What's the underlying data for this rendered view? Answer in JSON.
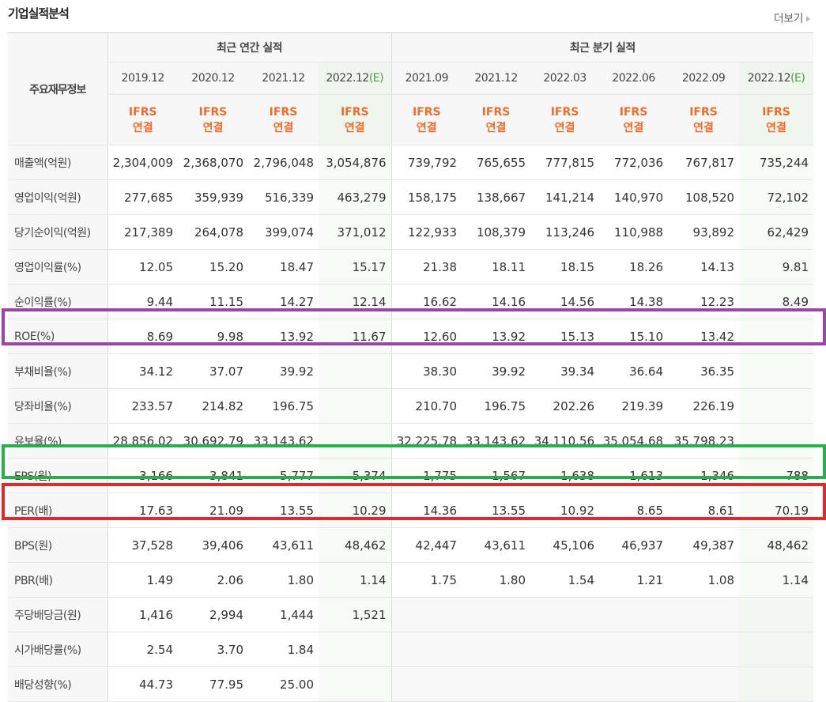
{
  "header": {
    "title": "기업실적분석",
    "more_label": "더보기"
  },
  "table": {
    "corner_label": "주요재무정보",
    "annual_group": "최근 연간 실적",
    "quarter_group": "최근 분기 실적",
    "estimate_mark": "(E)",
    "ifrs_line1": "IFRS",
    "ifrs_line2": "연결",
    "annual_dates": [
      "2019.12",
      "2020.12",
      "2021.12",
      "2022.12"
    ],
    "quarter_dates": [
      "2021.09",
      "2021.12",
      "2022.03",
      "2022.06",
      "2022.09",
      "2022.12"
    ],
    "rows": [
      {
        "label": "매출액(억원)",
        "values": [
          "2,304,009",
          "2,368,070",
          "2,796,048",
          "3,054,876",
          "739,792",
          "765,655",
          "777,815",
          "772,036",
          "767,817",
          "735,244"
        ]
      },
      {
        "label": "영업이익(억원)",
        "values": [
          "277,685",
          "359,939",
          "516,339",
          "463,279",
          "158,175",
          "138,667",
          "141,214",
          "140,970",
          "108,520",
          "72,102"
        ]
      },
      {
        "label": "당기순이익(억원)",
        "values": [
          "217,389",
          "264,078",
          "399,074",
          "371,012",
          "122,933",
          "108,379",
          "113,246",
          "110,988",
          "93,892",
          "62,429"
        ]
      },
      {
        "label": "영업이익률(%)",
        "values": [
          "12.05",
          "15.20",
          "18.47",
          "15.17",
          "21.38",
          "18.11",
          "18.15",
          "18.26",
          "14.13",
          "9.81"
        ]
      },
      {
        "label": "순이익률(%)",
        "values": [
          "9.44",
          "11.15",
          "14.27",
          "12.14",
          "16.62",
          "14.16",
          "14.56",
          "14.38",
          "12.23",
          "8.49"
        ]
      },
      {
        "label": "ROE(%)",
        "values": [
          "8.69",
          "9.98",
          "13.92",
          "11.67",
          "12.60",
          "13.92",
          "15.13",
          "15.10",
          "13.42",
          ""
        ]
      },
      {
        "label": "부채비율(%)",
        "values": [
          "34.12",
          "37.07",
          "39.92",
          "",
          "38.30",
          "39.92",
          "39.34",
          "36.64",
          "36.35",
          ""
        ]
      },
      {
        "label": "당좌비율(%)",
        "values": [
          "233.57",
          "214.82",
          "196.75",
          "",
          "210.70",
          "196.75",
          "202.26",
          "219.39",
          "226.19",
          ""
        ]
      },
      {
        "label": "유보율(%)",
        "values": [
          "28,856.02",
          "30,692.79",
          "33,143.62",
          "",
          "32,225.78",
          "33,143.62",
          "34,110.56",
          "35,054.68",
          "35,798.23",
          ""
        ]
      },
      {
        "label": "EPS(원)",
        "values": [
          "3,166",
          "3,841",
          "5,777",
          "5,374",
          "1,775",
          "1,567",
          "1,638",
          "1,613",
          "1,346",
          "788"
        ]
      },
      {
        "label": "PER(배)",
        "values": [
          "17.63",
          "21.09",
          "13.55",
          "10.29",
          "14.36",
          "13.55",
          "10.92",
          "8.65",
          "8.61",
          "70.19"
        ]
      },
      {
        "label": "BPS(원)",
        "values": [
          "37,528",
          "39,406",
          "43,611",
          "48,462",
          "42,447",
          "43,611",
          "45,106",
          "46,937",
          "49,387",
          "48,462"
        ]
      },
      {
        "label": "PBR(배)",
        "values": [
          "1.49",
          "2.06",
          "1.80",
          "1.14",
          "1.75",
          "1.80",
          "1.54",
          "1.21",
          "1.08",
          "1.14"
        ]
      },
      {
        "label": "주당배당금(원)",
        "values": [
          "1,416",
          "2,994",
          "1,444",
          "1,521",
          "",
          "",
          "",
          "",
          "",
          ""
        ],
        "quarter_empty": true
      },
      {
        "label": "시가배당률(%)",
        "values": [
          "2.54",
          "3.70",
          "1.84",
          "",
          "",
          "",
          "",
          "",
          "",
          ""
        ],
        "quarter_empty": true
      },
      {
        "label": "배당성향(%)",
        "values": [
          "44.73",
          "77.95",
          "25.00",
          "",
          "",
          "",
          "",
          "",
          "",
          ""
        ],
        "quarter_empty": true
      }
    ]
  },
  "highlights": {
    "purple_row": "ROE(%)",
    "purple_color": "#9b45a6",
    "green_row": "EPS(원)",
    "green_color": "#26b04a",
    "red_row": "PER(배)",
    "red_color": "#e02a2a"
  }
}
